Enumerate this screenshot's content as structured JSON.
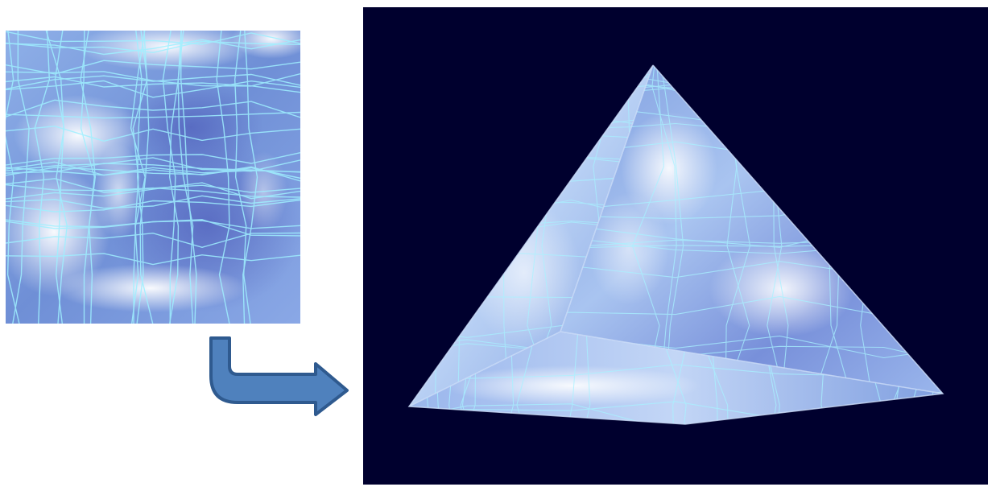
{
  "figure": {
    "description_free": true,
    "texture": {
      "icon": "water-texture-swatch",
      "colors": {
        "base": "#6f8fd6",
        "deep": "#5a6fc4",
        "highlight": "#ffffff",
        "caustic": "#8fe6ff"
      }
    },
    "arrow": {
      "icon": "bent-arrow-right",
      "colors": {
        "fill": "#4f81bd",
        "stroke": "#2f5a8f"
      }
    },
    "render": {
      "icon": "textured-pyramid",
      "colors": {
        "background": "#00002e",
        "face_light": "#a9c4f0",
        "face_mid": "#7f9ee0",
        "face_dark": "#5b73c8"
      }
    }
  }
}
